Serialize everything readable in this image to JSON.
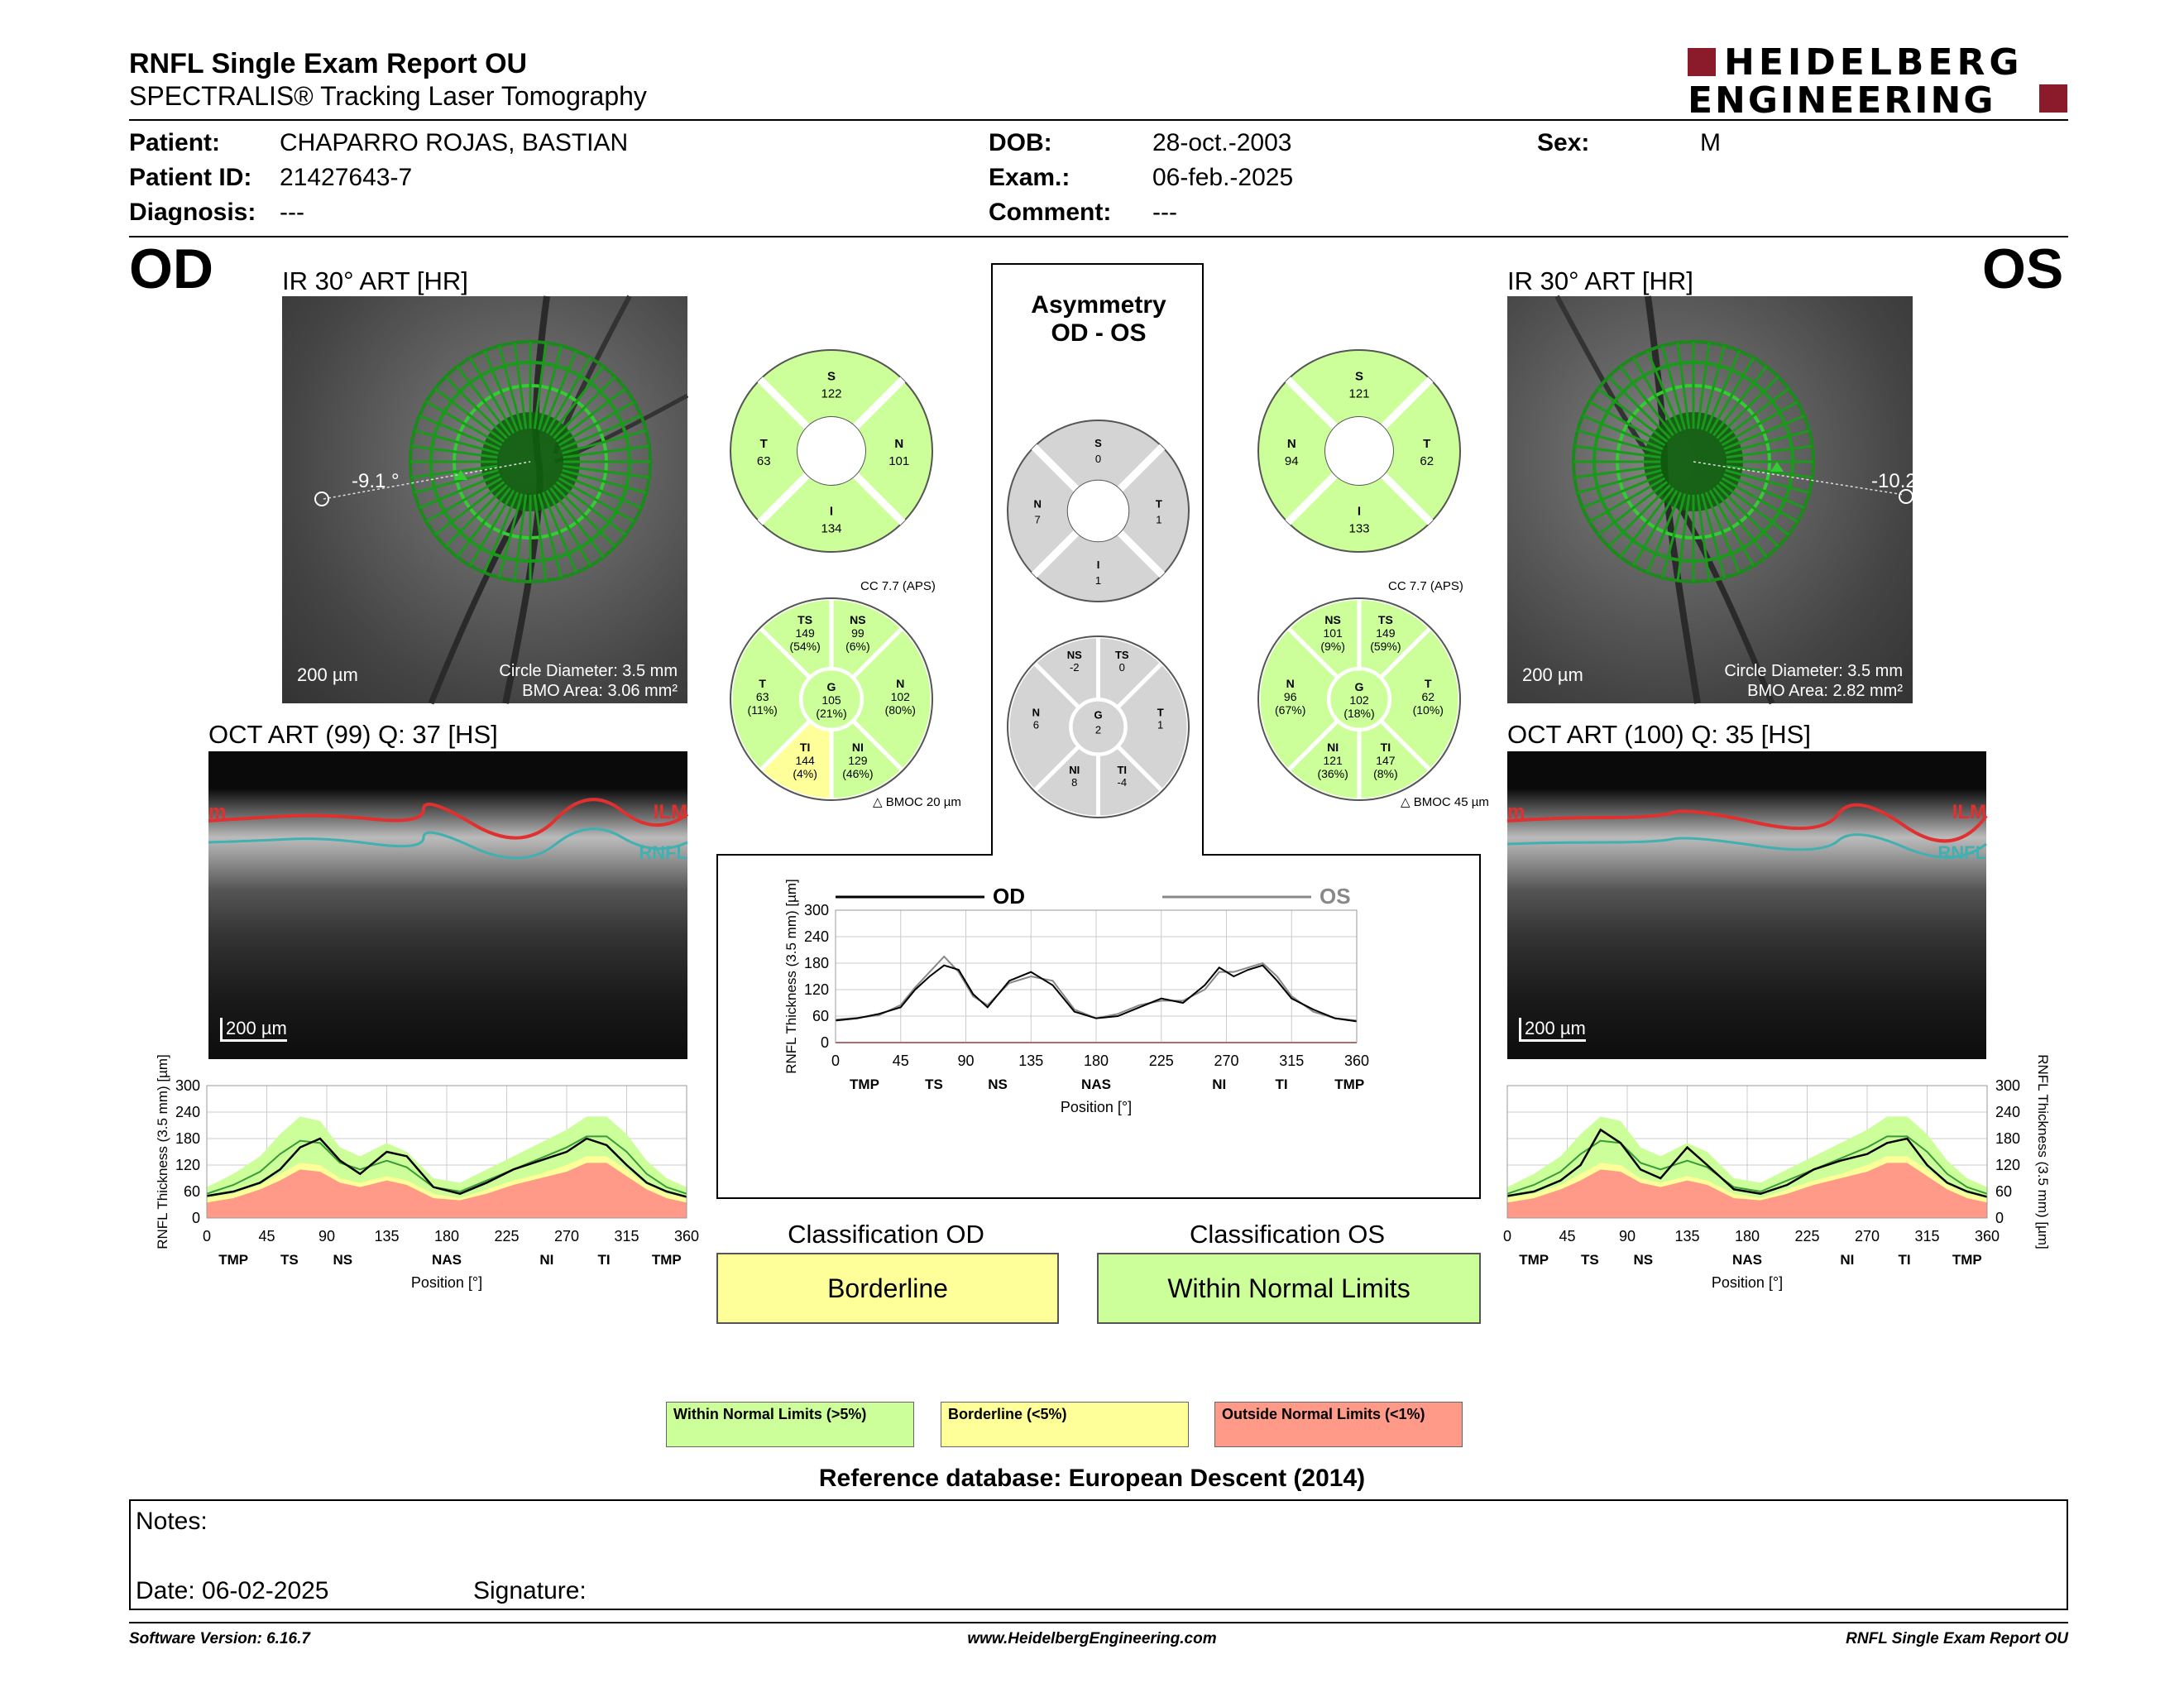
{
  "header": {
    "title": "RNFL Single Exam Report OU",
    "subtitle": "SPECTRALIS® Tracking Laser Tomography",
    "logo_line1": "HEIDELBERG",
    "logo_line2": "ENGINEERING"
  },
  "patient": {
    "patient_label": "Patient:",
    "patient_value": "CHAPARRO ROJAS, BASTIAN",
    "id_label": "Patient ID:",
    "id_value": "21427643-7",
    "diagnosis_label": "Diagnosis:",
    "diagnosis_value": "---",
    "dob_label": "DOB:",
    "dob_value": "28-oct.-2003",
    "exam_label": "Exam.:",
    "exam_value": "06-feb.-2025",
    "comment_label": "Comment:",
    "comment_value": "---",
    "sex_label": "Sex:",
    "sex_value": "M"
  },
  "od": {
    "eye_label": "OD",
    "ir_title": "IR 30° ART [HR]",
    "angle": "-9.1 °",
    "scale": "200 µm",
    "circle_diameter": "Circle Diameter: 3.5 mm",
    "bmo_area": "BMO Area: 3.06 mm²",
    "oct_title": "OCT ART (99) Q: 37 [HS]",
    "ilm": "ILM",
    "ilm_left": "m",
    "rnfl": "RNFL",
    "oct_scale": "200 µm",
    "classification_title": "Classification OD",
    "classification": "Borderline",
    "classification_color": "#ffff99",
    "cc": "CC 7.7 (APS)",
    "bmoc": "BMOC 20 µm",
    "quad": {
      "S": "122",
      "N": "101",
      "I": "134",
      "T": "63"
    },
    "sectors": {
      "TS": {
        "v": "149",
        "p": "(54%)"
      },
      "NS": {
        "v": "99",
        "p": "(6%)"
      },
      "N": {
        "v": "102",
        "p": "(80%)"
      },
      "NI": {
        "v": "129",
        "p": "(46%)"
      },
      "TI": {
        "v": "144",
        "p": "(4%)"
      },
      "T": {
        "v": "63",
        "p": "(11%)"
      },
      "G": {
        "v": "105",
        "p": "(21%)"
      }
    }
  },
  "os": {
    "eye_label": "OS",
    "ir_title": "IR 30° ART [HR]",
    "angle": "-10.2",
    "scale": "200 µm",
    "circle_diameter": "Circle Diameter: 3.5 mm",
    "bmo_area": "BMO Area: 2.82 mm²",
    "oct_title": "OCT ART (100) Q: 35 [HS]",
    "ilm": "ILM",
    "ilm_left": "m",
    "rnfl": "RNFL",
    "oct_scale": "200 µm",
    "classification_title": "Classification OS",
    "classification": "Within Normal Limits",
    "classification_color": "#ccff99",
    "cc": "CC 7.7 (APS)",
    "bmoc": "BMOC 45 µm",
    "quad": {
      "S": "121",
      "N": "94",
      "I": "133",
      "T": "62"
    },
    "sectors": {
      "TS": {
        "v": "149",
        "p": "(59%)"
      },
      "NS": {
        "v": "101",
        "p": "(9%)"
      },
      "N": {
        "v": "96",
        "p": "(67%)"
      },
      "NI": {
        "v": "121",
        "p": "(36%)"
      },
      "TI": {
        "v": "147",
        "p": "(8%)"
      },
      "T": {
        "v": "62",
        "p": "(10%)"
      },
      "G": {
        "v": "102",
        "p": "(18%)"
      }
    }
  },
  "asymmetry": {
    "title1": "Asymmetry",
    "title2": "OD - OS",
    "quad": {
      "S": "0",
      "N": "7",
      "T": "1",
      "I": "1"
    },
    "sectors": {
      "NS": "-2",
      "TS": "0",
      "N": "6",
      "T": "1",
      "G": "2",
      "NI": "8",
      "TI": "-4"
    }
  },
  "legend": {
    "wnl": "Within Normal Limits (>5%)",
    "bl": "Borderline (<5%)",
    "onl": "Outside Normal Limits (<1%)",
    "colors": {
      "wnl": "#ccff99",
      "bl": "#ffff99",
      "onl": "#ff9988"
    }
  },
  "reference": "Reference database: European Descent (2014)",
  "notes": {
    "notes_label": "Notes:",
    "date_label": "Date: 06-02-2025",
    "signature_label": "Signature:"
  },
  "footer": {
    "version": "Software Version: 6.16.7",
    "url": "www.HeidelbergEngineering.com",
    "report": "RNFL Single Exam Report OU"
  },
  "chart_data": [
    {
      "type": "area",
      "name_od_os": "OD vs OS",
      "legend": [
        "OD",
        "OS"
      ],
      "ylabel": "RNFL Thickness (3.5 mm) [µm]",
      "xlabel": "Position [°]",
      "xticks": [
        0,
        45,
        90,
        135,
        180,
        225,
        270,
        315,
        360
      ],
      "yticks": [
        0,
        60,
        120,
        180,
        240,
        300
      ],
      "sector_labels": [
        "TMP",
        "TS",
        "NS",
        "NAS",
        "NI",
        "TI",
        "TMP"
      ],
      "sector_positions": [
        20,
        68,
        112,
        180,
        265,
        308,
        355
      ],
      "xlim": [
        0,
        360
      ],
      "ylim": [
        0,
        300
      ],
      "x": [
        0,
        15,
        30,
        45,
        55,
        65,
        75,
        85,
        95,
        105,
        120,
        135,
        150,
        165,
        180,
        195,
        210,
        225,
        240,
        255,
        265,
        275,
        285,
        295,
        305,
        315,
        330,
        345,
        360
      ],
      "series": [
        {
          "name": "OD",
          "values": [
            50,
            55,
            65,
            80,
            120,
            150,
            175,
            165,
            110,
            80,
            140,
            160,
            130,
            70,
            55,
            60,
            80,
            100,
            90,
            130,
            170,
            150,
            165,
            175,
            140,
            100,
            75,
            55,
            48
          ]
        },
        {
          "name": "OS",
          "values": [
            52,
            56,
            62,
            85,
            125,
            160,
            195,
            160,
            105,
            85,
            135,
            150,
            140,
            75,
            55,
            65,
            85,
            95,
            95,
            120,
            160,
            160,
            170,
            180,
            150,
            105,
            70,
            55,
            50
          ]
        }
      ]
    },
    {
      "type": "area",
      "name_od": "OD normative",
      "ylabel": "RNFL Thickness (3.5 mm) [µm]",
      "xlabel": "Position [°]",
      "xticks": [
        0,
        45,
        90,
        135,
        180,
        225,
        270,
        315,
        360
      ],
      "yticks": [
        0,
        60,
        120,
        180,
        240,
        300
      ],
      "sector_labels": [
        "TMP",
        "TS",
        "NS",
        "NAS",
        "NI",
        "TI",
        "TMP"
      ],
      "sector_positions": [
        20,
        62,
        102,
        180,
        255,
        298,
        345
      ],
      "xlim": [
        0,
        360
      ],
      "ylim": [
        0,
        300
      ],
      "x": [
        0,
        20,
        40,
        55,
        70,
        85,
        100,
        115,
        135,
        150,
        170,
        190,
        210,
        230,
        250,
        270,
        285,
        300,
        315,
        330,
        345,
        360
      ],
      "series": [
        {
          "name": "OD",
          "values": [
            50,
            60,
            80,
            110,
            160,
            180,
            130,
            100,
            150,
            140,
            70,
            55,
            80,
            110,
            130,
            150,
            180,
            165,
            120,
            80,
            60,
            48
          ]
        },
        {
          "name": "normal_upper",
          "values": [
            70,
            100,
            140,
            190,
            230,
            220,
            160,
            140,
            170,
            150,
            90,
            80,
            110,
            140,
            170,
            200,
            230,
            230,
            190,
            130,
            90,
            70
          ]
        },
        {
          "name": "normal_mean",
          "values": [
            55,
            75,
            105,
            145,
            175,
            170,
            125,
            110,
            130,
            115,
            70,
            60,
            85,
            110,
            135,
            160,
            185,
            185,
            150,
            100,
            70,
            55
          ]
        },
        {
          "name": "borderline_upper",
          "values": [
            45,
            55,
            75,
            100,
            125,
            120,
            90,
            80,
            95,
            85,
            55,
            45,
            65,
            85,
            100,
            120,
            140,
            140,
            110,
            75,
            55,
            45
          ]
        },
        {
          "name": "outside_upper",
          "values": [
            35,
            45,
            65,
            85,
            110,
            105,
            80,
            70,
            85,
            75,
            45,
            40,
            55,
            75,
            90,
            105,
            125,
            125,
            95,
            65,
            45,
            35
          ]
        }
      ]
    },
    {
      "type": "area",
      "name_os": "OS normative",
      "ylabel": "RNFL Thickness (3.5 mm) [µm]",
      "xlabel": "Position [°]",
      "xticks": [
        0,
        45,
        90,
        135,
        180,
        225,
        270,
        315,
        360
      ],
      "yticks": [
        0,
        60,
        120,
        180,
        240,
        300
      ],
      "sector_labels": [
        "TMP",
        "TS",
        "NS",
        "NAS",
        "NI",
        "TI",
        "TMP"
      ],
      "sector_positions": [
        20,
        62,
        102,
        180,
        255,
        298,
        345
      ],
      "xlim": [
        0,
        360
      ],
      "ylim": [
        0,
        300
      ],
      "x": [
        0,
        20,
        40,
        55,
        70,
        85,
        100,
        115,
        135,
        150,
        170,
        190,
        210,
        230,
        250,
        270,
        285,
        300,
        315,
        330,
        345,
        360
      ],
      "series": [
        {
          "name": "OS",
          "values": [
            50,
            60,
            85,
            120,
            200,
            170,
            110,
            90,
            160,
            120,
            65,
            55,
            75,
            110,
            130,
            145,
            170,
            180,
            120,
            80,
            60,
            48
          ]
        },
        {
          "name": "normal_upper",
          "values": [
            70,
            100,
            140,
            190,
            230,
            220,
            160,
            140,
            170,
            150,
            90,
            80,
            110,
            140,
            170,
            200,
            230,
            230,
            190,
            130,
            90,
            70
          ]
        },
        {
          "name": "normal_mean",
          "values": [
            55,
            75,
            105,
            145,
            175,
            170,
            125,
            110,
            130,
            115,
            70,
            60,
            85,
            110,
            135,
            160,
            185,
            185,
            150,
            100,
            70,
            55
          ]
        },
        {
          "name": "borderline_upper",
          "values": [
            45,
            55,
            75,
            100,
            125,
            120,
            90,
            80,
            95,
            85,
            55,
            45,
            65,
            85,
            100,
            120,
            140,
            140,
            110,
            75,
            55,
            45
          ]
        },
        {
          "name": "outside_upper",
          "values": [
            35,
            45,
            65,
            85,
            110,
            105,
            80,
            70,
            85,
            75,
            45,
            40,
            55,
            75,
            90,
            105,
            125,
            125,
            95,
            65,
            45,
            35
          ]
        }
      ]
    }
  ]
}
